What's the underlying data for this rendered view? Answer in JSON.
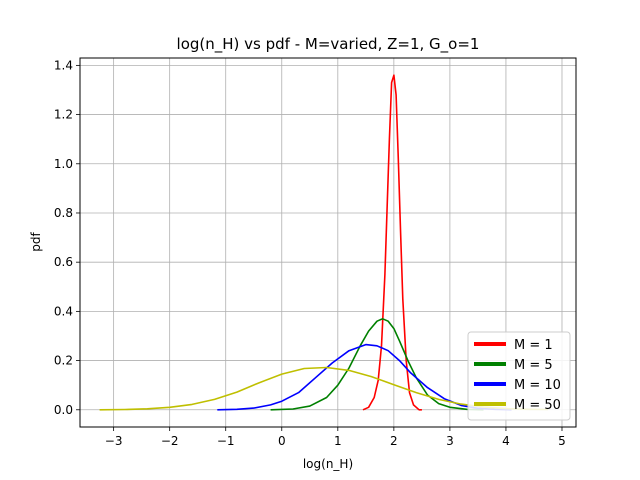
{
  "chart_data": {
    "type": "line",
    "title": "log(n_H) vs pdf - M=varied, Z=1, G_o=1",
    "xlabel": "log(n_H)",
    "ylabel": "pdf",
    "xlim": [
      -3.6,
      5.25
    ],
    "ylim": [
      -0.07,
      1.43
    ],
    "x_ticks": [
      -3,
      -2,
      -1,
      0,
      1,
      2,
      3,
      4,
      5
    ],
    "y_ticks": [
      0.0,
      0.2,
      0.4,
      0.6,
      0.8,
      1.0,
      1.2,
      1.4
    ],
    "x_tick_labels": [
      "−3",
      "−2",
      "−1",
      "0",
      "1",
      "2",
      "3",
      "4",
      "5"
    ],
    "y_tick_labels": [
      "0.0",
      "0.2",
      "0.4",
      "0.6",
      "0.8",
      "1.0",
      "1.2",
      "1.4"
    ],
    "grid": true,
    "legend_position": "bottom-right",
    "series": [
      {
        "name": "M = 1",
        "color": "#ff0000",
        "x": [
          1.45,
          1.55,
          1.65,
          1.72,
          1.78,
          1.84,
          1.88,
          1.92,
          1.96,
          2.0,
          2.04,
          2.08,
          2.12,
          2.16,
          2.22,
          2.28,
          2.35,
          2.45,
          2.5
        ],
        "y": [
          0.0,
          0.01,
          0.05,
          0.12,
          0.26,
          0.55,
          0.82,
          1.1,
          1.33,
          1.36,
          1.28,
          1.02,
          0.72,
          0.45,
          0.2,
          0.07,
          0.02,
          0.0,
          0.0
        ]
      },
      {
        "name": "M = 5",
        "color": "#008000",
        "x": [
          -0.2,
          0.2,
          0.5,
          0.8,
          1.0,
          1.2,
          1.4,
          1.55,
          1.7,
          1.8,
          1.9,
          2.0,
          2.1,
          2.25,
          2.4,
          2.6,
          2.8,
          3.0,
          3.3,
          3.6
        ],
        "y": [
          0.0,
          0.003,
          0.015,
          0.05,
          0.1,
          0.17,
          0.26,
          0.32,
          0.36,
          0.37,
          0.36,
          0.33,
          0.28,
          0.2,
          0.13,
          0.06,
          0.025,
          0.01,
          0.002,
          0.0
        ]
      },
      {
        "name": "M = 10",
        "color": "#0000ff",
        "x": [
          -1.15,
          -0.8,
          -0.5,
          -0.2,
          0.0,
          0.3,
          0.6,
          0.9,
          1.2,
          1.5,
          1.7,
          1.9,
          2.1,
          2.3,
          2.6,
          2.9,
          3.2,
          3.5,
          3.8,
          4.1
        ],
        "y": [
          0.0,
          0.002,
          0.007,
          0.02,
          0.035,
          0.07,
          0.13,
          0.19,
          0.24,
          0.265,
          0.26,
          0.24,
          0.2,
          0.15,
          0.09,
          0.045,
          0.018,
          0.006,
          0.002,
          0.0
        ]
      },
      {
        "name": "M = 50",
        "color": "#bfbf00",
        "x": [
          -3.25,
          -2.8,
          -2.4,
          -2.0,
          -1.6,
          -1.2,
          -0.8,
          -0.4,
          0.0,
          0.4,
          0.8,
          1.2,
          1.6,
          2.0,
          2.4,
          2.8,
          3.2,
          3.6,
          4.0,
          4.4,
          4.75
        ],
        "y": [
          0.0,
          0.001,
          0.004,
          0.01,
          0.022,
          0.042,
          0.072,
          0.11,
          0.145,
          0.168,
          0.172,
          0.16,
          0.135,
          0.102,
          0.07,
          0.042,
          0.023,
          0.011,
          0.005,
          0.002,
          0.001
        ]
      }
    ]
  }
}
